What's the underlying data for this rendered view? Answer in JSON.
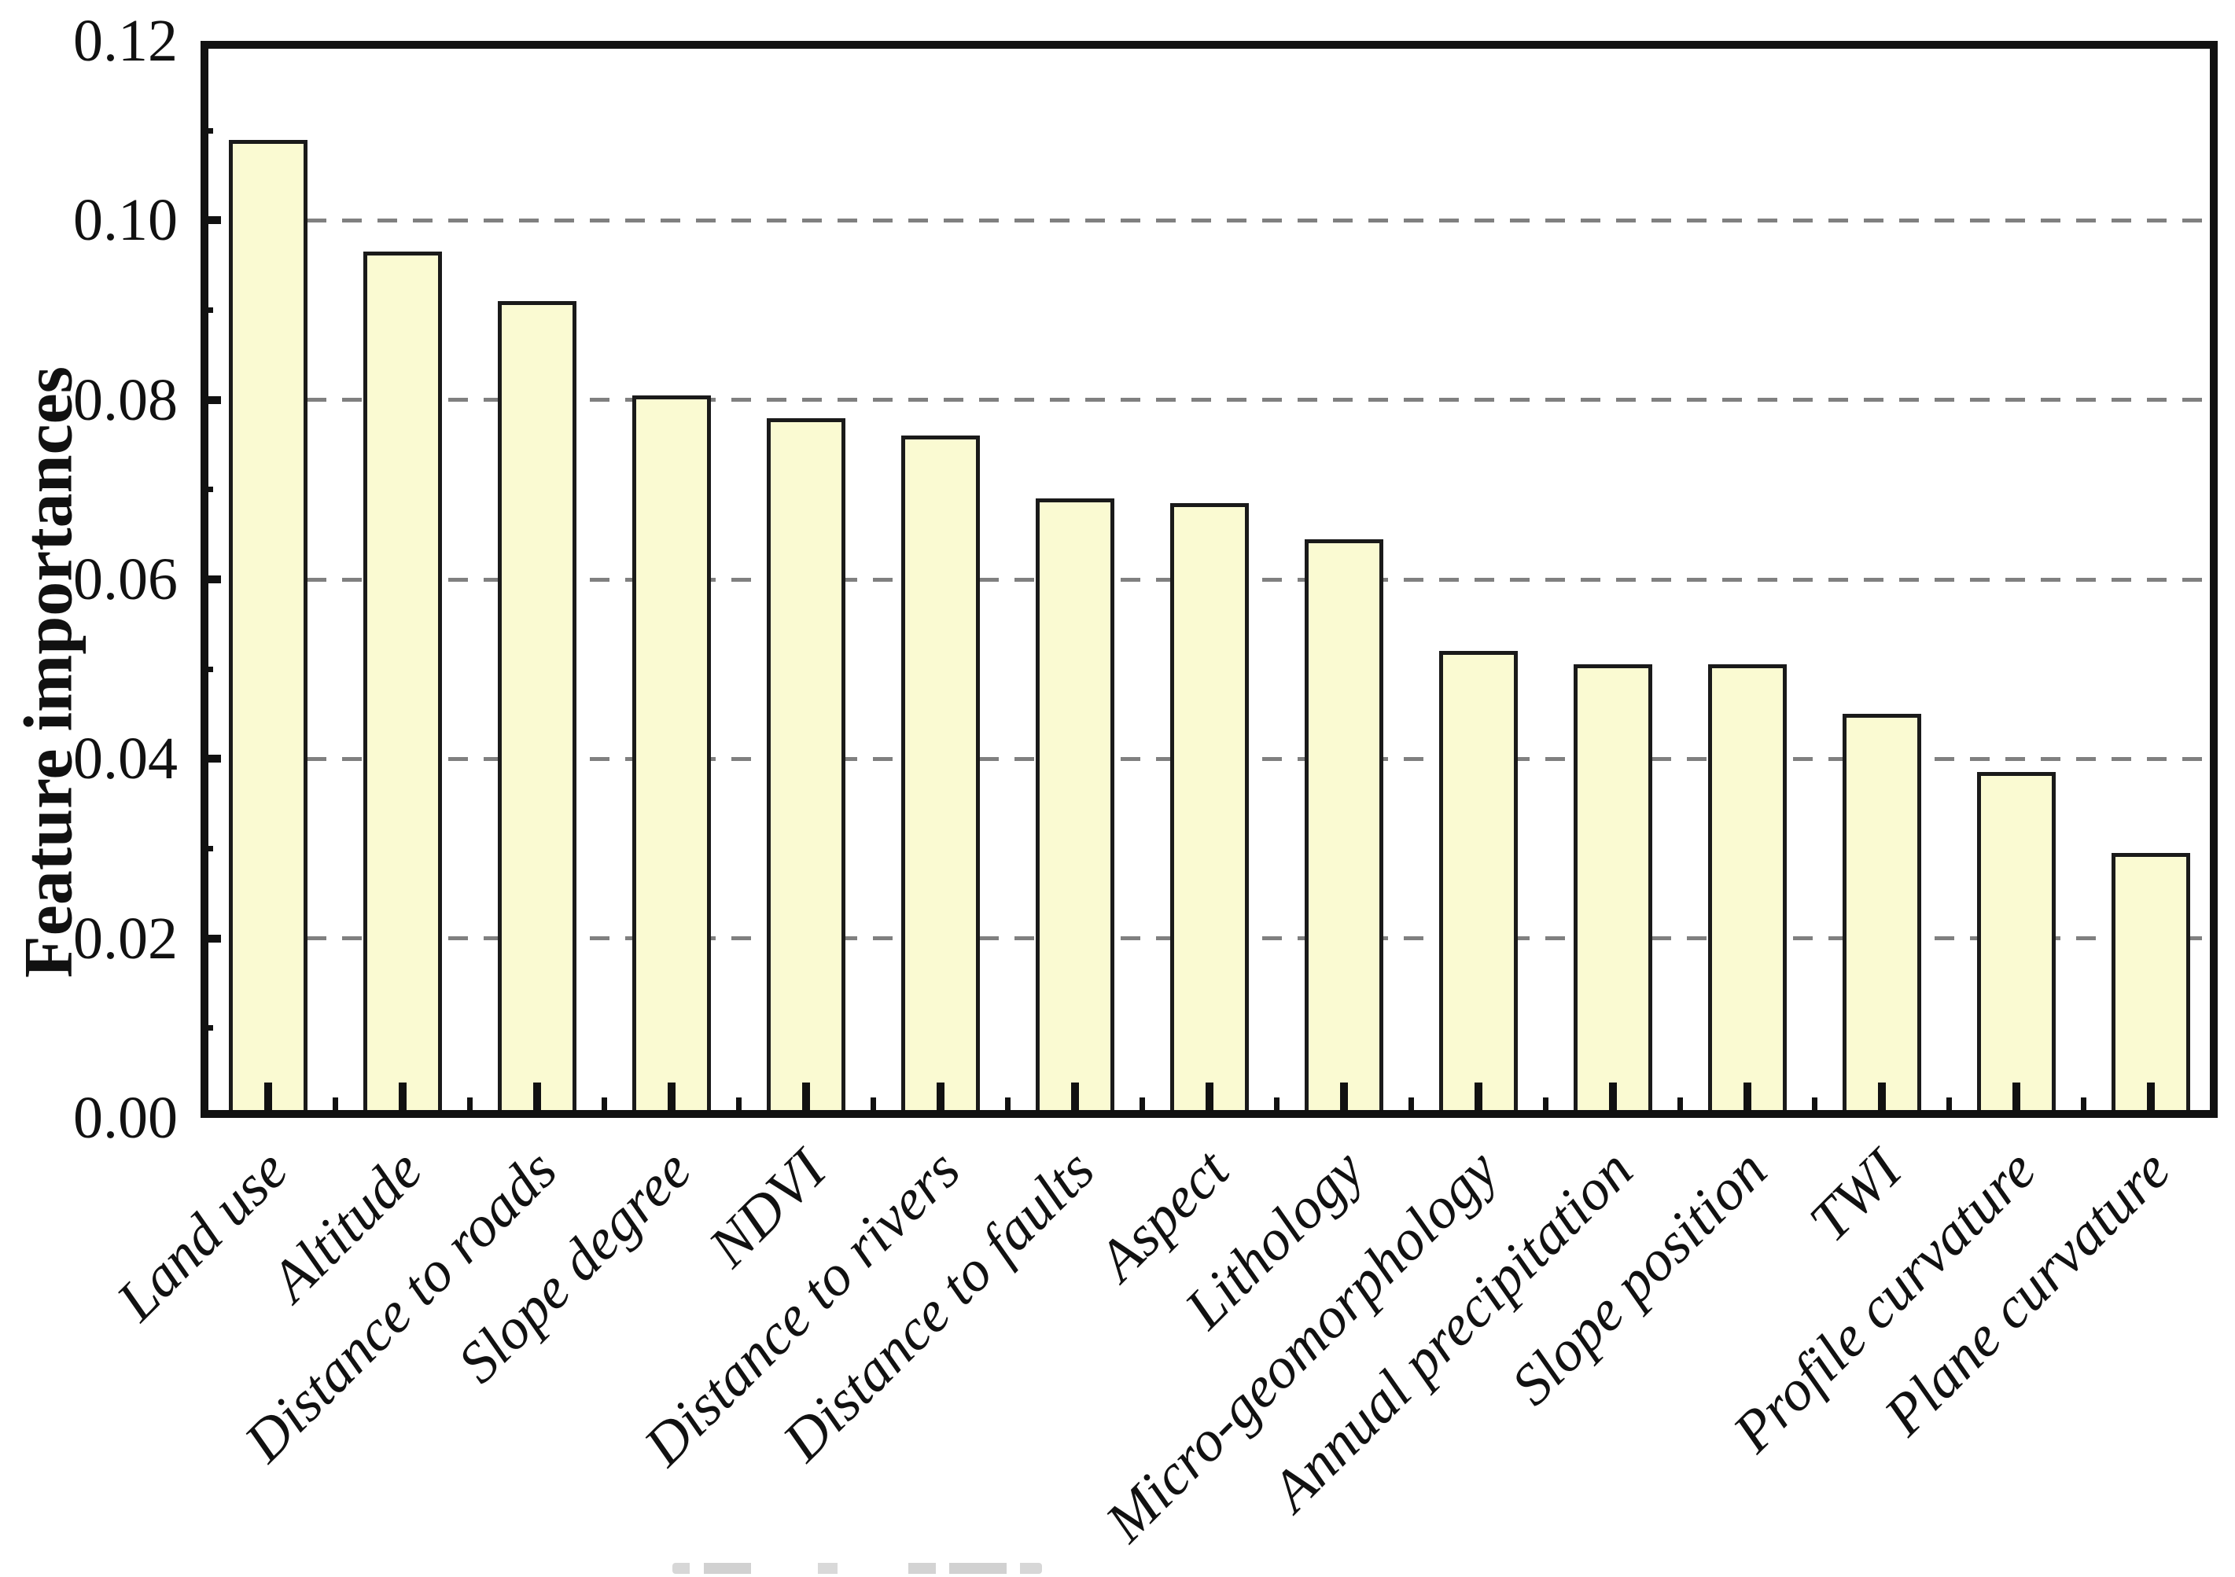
{
  "figure": {
    "background": "#ffffff",
    "kind": "feature-importance bar figure"
  },
  "chart_data": {
    "type": "bar",
    "title": "",
    "xlabel": "",
    "ylabel": "Feature importances",
    "categories": [
      "Land use",
      "Altitude",
      "Distance to roads",
      "Slope degree",
      "NDVI",
      "Distance to rivers",
      "Distance to faults",
      "Aspect",
      "Lithology",
      "Micro-geomorphology",
      "Annual precipitation",
      "Slope position",
      "TWI",
      "Profile curvature",
      "Plane curvature"
    ],
    "values": [
      0.109,
      0.0965,
      0.091,
      0.0805,
      0.078,
      0.076,
      0.069,
      0.0685,
      0.0645,
      0.052,
      0.0505,
      0.0505,
      0.045,
      0.0385,
      0.0295
    ],
    "ylim": [
      0,
      0.12
    ],
    "ytick_values": [
      0.0,
      0.02,
      0.04,
      0.06,
      0.08,
      0.1,
      0.12
    ],
    "ytick_labels": [
      "0.00",
      "0.02",
      "0.04",
      "0.06",
      "0.08",
      "0.10",
      "0.12"
    ],
    "y_minor_tick_values": [
      0.01,
      0.03,
      0.05,
      0.07,
      0.09,
      0.11
    ],
    "gridlines": [
      0.02,
      0.04,
      0.06,
      0.08,
      0.1
    ],
    "grid_style": "dashed",
    "grid_on": true,
    "legend": null,
    "x_label_rotation_deg": 45,
    "colors": {
      "bar_fill": "#FAFAD2",
      "bar_border": "#1a1a1a",
      "grid": "#808080",
      "axis": "#111111",
      "text": "#111111"
    }
  }
}
